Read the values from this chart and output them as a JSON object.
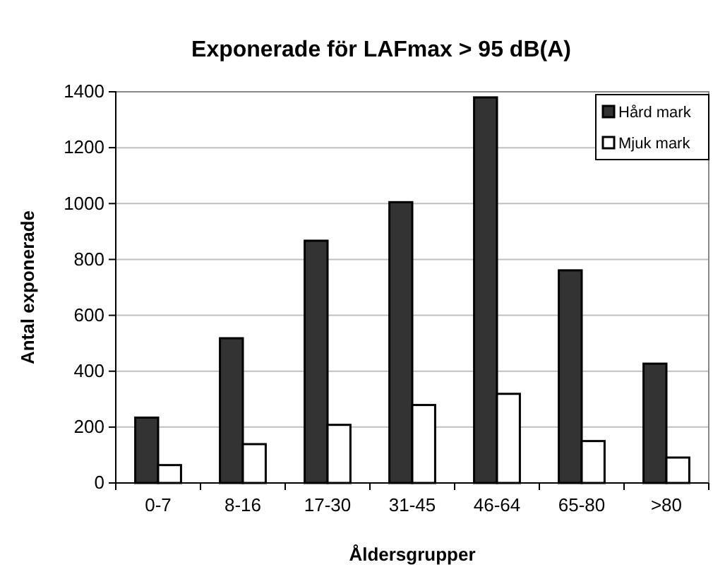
{
  "chart_data": {
    "type": "bar",
    "title": "Exponerade för LAFmax > 95 dB(A)",
    "xlabel": "Åldersgrupper",
    "ylabel": "Antal exponerade",
    "categories": [
      "0-7",
      "8-16",
      "17-30",
      "31-45",
      "46-64",
      "65-80",
      ">80"
    ],
    "series": [
      {
        "name": "Hård mark",
        "color": "#333333",
        "values": [
          234,
          518,
          867,
          1005,
          1380,
          761,
          427
        ]
      },
      {
        "name": "Mjuk mark",
        "color": "#ffffff",
        "values": [
          64,
          139,
          208,
          279,
          319,
          150,
          91
        ]
      }
    ],
    "ylim": [
      0,
      1400
    ],
    "yticks": [
      0,
      200,
      400,
      600,
      800,
      1000,
      1200,
      1400
    ],
    "grid": "y",
    "legend": "top right"
  }
}
